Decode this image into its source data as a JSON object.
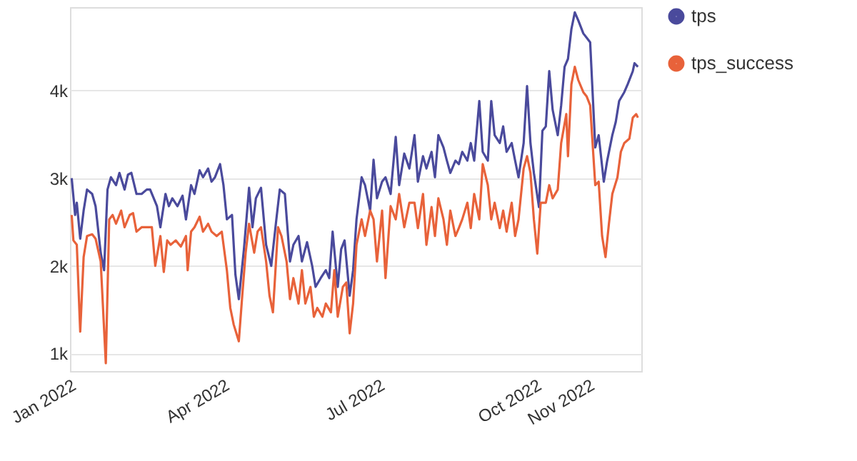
{
  "chart_data": {
    "type": "line",
    "xlim": [
      "2022-01-01",
      "2022-12-02"
    ],
    "xticks": [
      {
        "value": "2022-01-01",
        "label": "Jan 2022"
      },
      {
        "value": "2022-04-01",
        "label": "Apr 2022"
      },
      {
        "value": "2022-07-01",
        "label": "Jul 2022"
      },
      {
        "value": "2022-10-01",
        "label": "Oct 2022"
      },
      {
        "value": "2022-11-01",
        "label": "Nov 2022"
      }
    ],
    "ylim": [
      800,
      4950
    ],
    "yticks": [
      {
        "value": 1000,
        "label": "1k"
      },
      {
        "value": 2000,
        "label": "2k"
      },
      {
        "value": 3000,
        "label": "3k"
      },
      {
        "value": 4000,
        "label": "4k"
      }
    ],
    "grid": "y",
    "legend": "right",
    "marker": "none",
    "line_style": "solid",
    "series": [
      {
        "name": "tps",
        "color": "#4a4a9c",
        "x": [
          "2022-01-02",
          "2022-01-04",
          "2022-01-05",
          "2022-01-07",
          "2022-01-09",
          "2022-01-11",
          "2022-01-14",
          "2022-01-16",
          "2022-01-19",
          "2022-01-21",
          "2022-01-23",
          "2022-01-25",
          "2022-01-28",
          "2022-01-30",
          "2022-02-02",
          "2022-02-04",
          "2022-02-06",
          "2022-02-09",
          "2022-02-12",
          "2022-02-15",
          "2022-02-17",
          "2022-02-21",
          "2022-02-23",
          "2022-02-26",
          "2022-02-28",
          "2022-03-02",
          "2022-03-05",
          "2022-03-08",
          "2022-03-10",
          "2022-03-13",
          "2022-03-15",
          "2022-03-18",
          "2022-03-20",
          "2022-03-23",
          "2022-03-25",
          "2022-03-27",
          "2022-03-30",
          "2022-04-01",
          "2022-04-03",
          "2022-04-06",
          "2022-04-08",
          "2022-04-10",
          "2022-04-13",
          "2022-04-16",
          "2022-04-18",
          "2022-04-20",
          "2022-04-23",
          "2022-04-26",
          "2022-04-29",
          "2022-05-02",
          "2022-05-04",
          "2022-05-07",
          "2022-05-10",
          "2022-05-12",
          "2022-05-15",
          "2022-05-17",
          "2022-05-20",
          "2022-05-23",
          "2022-05-25",
          "2022-05-28",
          "2022-05-31",
          "2022-06-02",
          "2022-06-04",
          "2022-06-07",
          "2022-06-09",
          "2022-06-11",
          "2022-06-14",
          "2022-06-16",
          "2022-06-18",
          "2022-06-21",
          "2022-06-23",
          "2022-06-26",
          "2022-06-28",
          "2022-06-30",
          "2022-07-03",
          "2022-07-05",
          "2022-07-08",
          "2022-07-11",
          "2022-07-13",
          "2022-07-16",
          "2022-07-19",
          "2022-07-22",
          "2022-07-24",
          "2022-07-27",
          "2022-07-29",
          "2022-08-01",
          "2022-08-03",
          "2022-08-05",
          "2022-08-08",
          "2022-08-10",
          "2022-08-12",
          "2022-08-15",
          "2022-08-17",
          "2022-08-19",
          "2022-08-22",
          "2022-08-24",
          "2022-08-26",
          "2022-08-29",
          "2022-08-31",
          "2022-09-03",
          "2022-09-05",
          "2022-09-07",
          "2022-09-10",
          "2022-09-12",
          "2022-09-14",
          "2022-09-17",
          "2022-09-19",
          "2022-09-21",
          "2022-09-24",
          "2022-09-26",
          "2022-09-28",
          "2022-09-30",
          "2022-10-03",
          "2022-10-05",
          "2022-10-07",
          "2022-10-09",
          "2022-10-11",
          "2022-10-14",
          "2022-10-16",
          "2022-10-18",
          "2022-10-20",
          "2022-10-22",
          "2022-10-24",
          "2022-10-26",
          "2022-10-29",
          "2022-10-31",
          "2022-11-02",
          "2022-11-05",
          "2022-11-07",
          "2022-11-10",
          "2022-11-12",
          "2022-11-15",
          "2022-11-17",
          "2022-11-19",
          "2022-11-22",
          "2022-11-24",
          "2022-11-27",
          "2022-11-28",
          "2022-11-30"
        ],
        "values": [
          3000,
          2580,
          2720,
          2310,
          2630,
          2870,
          2820,
          2680,
          2150,
          1950,
          2870,
          3010,
          2920,
          3060,
          2870,
          3040,
          3060,
          2820,
          2820,
          2870,
          2870,
          2680,
          2440,
          2820,
          2680,
          2770,
          2680,
          2800,
          2530,
          2920,
          2820,
          3090,
          3010,
          3110,
          2960,
          3010,
          3160,
          2920,
          2530,
          2580,
          1900,
          1620,
          2190,
          2890,
          2440,
          2770,
          2890,
          2240,
          2000,
          2530,
          2870,
          2820,
          2050,
          2240,
          2340,
          2050,
          2270,
          2000,
          1760,
          1860,
          1950,
          1860,
          2390,
          1760,
          2190,
          2290,
          1660,
          1950,
          2530,
          3010,
          2920,
          2630,
          3210,
          2770,
          2960,
          3010,
          2820,
          3470,
          2920,
          3280,
          3110,
          3490,
          2960,
          3250,
          3110,
          3300,
          3010,
          3490,
          3350,
          3200,
          3060,
          3200,
          3160,
          3300,
          3200,
          3400,
          3200,
          3880,
          3300,
          3200,
          3880,
          3490,
          3400,
          3590,
          3300,
          3400,
          3200,
          3010,
          3400,
          4050,
          3400,
          3060,
          2670,
          3540,
          3590,
          4220,
          3780,
          3490,
          3830,
          4270,
          4360,
          4700,
          4890,
          4800,
          4650,
          4600,
          4550,
          3350,
          3490,
          2960,
          3200,
          3490,
          3640,
          3880,
          3980,
          4070,
          4220,
          4310,
          4270
        ]
      },
      {
        "name": "tps_success",
        "color": "#e8623a",
        "x": [
          "2022-01-02",
          "2022-01-03",
          "2022-01-05",
          "2022-01-07",
          "2022-01-09",
          "2022-01-11",
          "2022-01-14",
          "2022-01-16",
          "2022-01-19",
          "2022-01-22",
          "2022-01-24",
          "2022-01-26",
          "2022-01-28",
          "2022-01-31",
          "2022-02-02",
          "2022-02-05",
          "2022-02-07",
          "2022-02-09",
          "2022-02-12",
          "2022-02-15",
          "2022-02-18",
          "2022-02-20",
          "2022-02-23",
          "2022-02-25",
          "2022-02-27",
          "2022-03-01",
          "2022-03-04",
          "2022-03-07",
          "2022-03-10",
          "2022-03-11",
          "2022-03-13",
          "2022-03-15",
          "2022-03-18",
          "2022-03-20",
          "2022-03-23",
          "2022-03-25",
          "2022-03-28",
          "2022-03-31",
          "2022-04-03",
          "2022-04-05",
          "2022-04-07",
          "2022-04-10",
          "2022-04-12",
          "2022-04-14",
          "2022-04-16",
          "2022-04-19",
          "2022-04-21",
          "2022-04-23",
          "2022-04-26",
          "2022-04-28",
          "2022-04-30",
          "2022-05-03",
          "2022-05-05",
          "2022-05-08",
          "2022-05-10",
          "2022-05-12",
          "2022-05-15",
          "2022-05-17",
          "2022-05-19",
          "2022-05-22",
          "2022-05-24",
          "2022-05-26",
          "2022-05-29",
          "2022-05-31",
          "2022-06-03",
          "2022-06-05",
          "2022-06-07",
          "2022-06-10",
          "2022-06-12",
          "2022-06-14",
          "2022-06-16",
          "2022-06-18",
          "2022-06-21",
          "2022-06-23",
          "2022-06-26",
          "2022-06-28",
          "2022-06-30",
          "2022-07-03",
          "2022-07-05",
          "2022-07-08",
          "2022-07-11",
          "2022-07-13",
          "2022-07-16",
          "2022-07-19",
          "2022-07-22",
          "2022-07-24",
          "2022-07-27",
          "2022-07-29",
          "2022-08-01",
          "2022-08-03",
          "2022-08-05",
          "2022-08-08",
          "2022-08-10",
          "2022-08-12",
          "2022-08-15",
          "2022-08-17",
          "2022-08-19",
          "2022-08-22",
          "2022-08-24",
          "2022-08-26",
          "2022-08-29",
          "2022-08-31",
          "2022-09-03",
          "2022-09-05",
          "2022-09-07",
          "2022-09-10",
          "2022-09-12",
          "2022-09-14",
          "2022-09-17",
          "2022-09-19",
          "2022-09-21",
          "2022-09-24",
          "2022-09-26",
          "2022-09-28",
          "2022-09-30",
          "2022-10-02",
          "2022-10-04",
          "2022-10-07",
          "2022-10-09",
          "2022-10-11",
          "2022-10-14",
          "2022-10-16",
          "2022-10-19",
          "2022-10-20",
          "2022-10-22",
          "2022-10-24",
          "2022-10-26",
          "2022-10-29",
          "2022-10-31",
          "2022-11-02",
          "2022-11-05",
          "2022-11-07",
          "2022-11-09",
          "2022-11-11",
          "2022-11-13",
          "2022-11-15",
          "2022-11-18",
          "2022-11-20",
          "2022-11-22",
          "2022-11-25",
          "2022-11-27",
          "2022-11-29",
          "2022-11-30"
        ],
        "values": [
          2580,
          2290,
          2240,
          1250,
          2100,
          2340,
          2360,
          2310,
          2050,
          890,
          2530,
          2580,
          2480,
          2630,
          2440,
          2580,
          2600,
          2390,
          2440,
          2440,
          2440,
          2000,
          2340,
          1930,
          2290,
          2240,
          2290,
          2220,
          2340,
          1950,
          2390,
          2440,
          2560,
          2390,
          2480,
          2390,
          2340,
          2390,
          1950,
          1520,
          1330,
          1140,
          1660,
          2150,
          2480,
          2150,
          2390,
          2440,
          2050,
          1660,
          1470,
          2440,
          2340,
          2050,
          1620,
          1860,
          1570,
          1950,
          1570,
          1760,
          1420,
          1520,
          1420,
          1570,
          1470,
          1950,
          1420,
          1760,
          1810,
          1230,
          1570,
          2240,
          2530,
          2340,
          2630,
          2530,
          2050,
          2630,
          1860,
          2680,
          2530,
          2820,
          2440,
          2720,
          2720,
          2430,
          2820,
          2240,
          2670,
          2340,
          2770,
          2530,
          2240,
          2630,
          2340,
          2430,
          2530,
          2720,
          2430,
          2820,
          2530,
          3160,
          2920,
          2530,
          2720,
          2430,
          2630,
          2390,
          2720,
          2340,
          2530,
          3110,
          3250,
          3060,
          2530,
          2140,
          2720,
          2720,
          2920,
          2770,
          2870,
          3400,
          3730,
          3250,
          4070,
          4270,
          4120,
          3980,
          3930,
          3830,
          2920,
          2960,
          2340,
          2100,
          2480,
          2820,
          3010,
          3300,
          3400,
          3450,
          3690,
          3730,
          3690
        ]
      }
    ]
  }
}
